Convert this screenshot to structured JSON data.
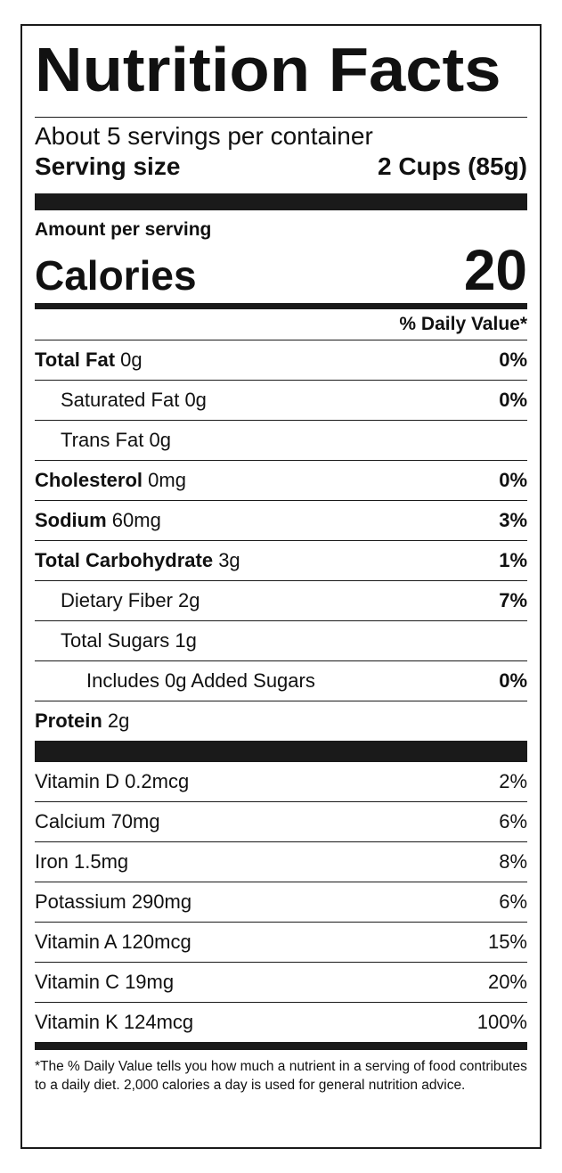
{
  "title": "Nutrition Facts",
  "servings_per_container": "About 5 servings per container",
  "serving_size": {
    "label": "Serving size",
    "value": "2 Cups (85g)"
  },
  "amount_per_serving": "Amount per serving",
  "calories": {
    "label": "Calories",
    "value": "20"
  },
  "dv_header": "% Daily Value*",
  "nutrients": [
    {
      "name": "Total Fat",
      "amount": "0g",
      "dv": "0%"
    },
    {
      "name": "Saturated Fat",
      "amount": "0g",
      "dv": "0%"
    },
    {
      "name": "Trans Fat",
      "amount": "0g",
      "dv": ""
    },
    {
      "name": "Cholesterol",
      "amount": "0mg",
      "dv": "0%"
    },
    {
      "name": "Sodium",
      "amount": "60mg",
      "dv": "3%"
    },
    {
      "name": "Total Carbohydrate",
      "amount": "3g",
      "dv": "1%"
    },
    {
      "name": "Dietary Fiber",
      "amount": "2g",
      "dv": "7%"
    },
    {
      "name": "Total Sugars",
      "amount": "1g",
      "dv": ""
    },
    {
      "name": "Includes 0g Added Sugars",
      "amount": "",
      "dv": "0%"
    },
    {
      "name": "Protein",
      "amount": "2g",
      "dv": ""
    }
  ],
  "vitamins": [
    {
      "text": "Vitamin D 0.2mcg",
      "dv": "2%"
    },
    {
      "text": "Calcium 70mg",
      "dv": "6%"
    },
    {
      "text": "Iron 1.5mg",
      "dv": "8%"
    },
    {
      "text": "Potassium 290mg",
      "dv": "6%"
    },
    {
      "text": "Vitamin A 120mcg",
      "dv": "15%"
    },
    {
      "text": "Vitamin C 19mg",
      "dv": "20%"
    },
    {
      "text": "Vitamin K 124mcg",
      "dv": "100%"
    }
  ],
  "footnote": "*The % Daily Value tells you how much a nutrient in a serving of food contributes to a daily diet. 2,000 calories a day is used for general nutrition advice."
}
